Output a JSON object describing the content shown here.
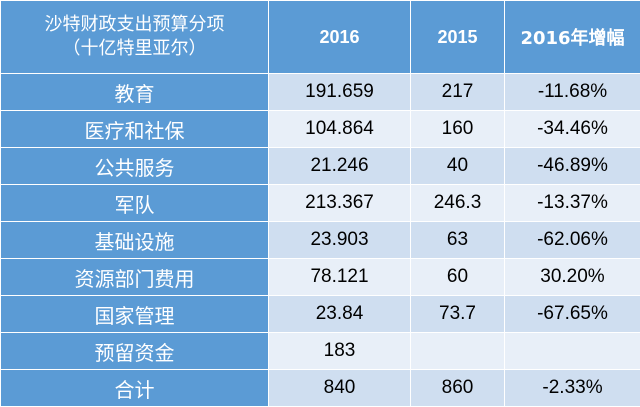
{
  "header": {
    "label_line1": "沙特财政支出预算分项",
    "label_line2": "（十亿特里亚尔）",
    "col_2016": "2016",
    "col_2015": "2015",
    "col_change": "2016年增幅"
  },
  "rows": [
    {
      "category": "教育",
      "v2016": "191.659",
      "v2015": "217",
      "change": "-11.68%"
    },
    {
      "category": "医疗和社保",
      "v2016": "104.864",
      "v2015": "160",
      "change": "-34.46%"
    },
    {
      "category": "公共服务",
      "v2016": "21.246",
      "v2015": "40",
      "change": "-46.89%"
    },
    {
      "category": "军队",
      "v2016": "213.367",
      "v2015": "246.3",
      "change": "-13.37%"
    },
    {
      "category": "基础设施",
      "v2016": "23.903",
      "v2015": "63",
      "change": "-62.06%"
    },
    {
      "category": "资源部门费用",
      "v2016": "78.121",
      "v2015": "60",
      "change": "30.20%"
    },
    {
      "category": "国家管理",
      "v2016": "23.84",
      "v2015": "73.7",
      "change": "-67.65%"
    },
    {
      "category": "预留资金",
      "v2016": "183",
      "v2015": "",
      "change": ""
    },
    {
      "category": "合计",
      "v2016": "840",
      "v2015": "860",
      "change": "-2.33%"
    }
  ],
  "colors": {
    "header_bg": "#5b9bd5",
    "row_dark": "#cfdef0",
    "row_light": "#e8eff8",
    "header_text": "#ffffff"
  }
}
